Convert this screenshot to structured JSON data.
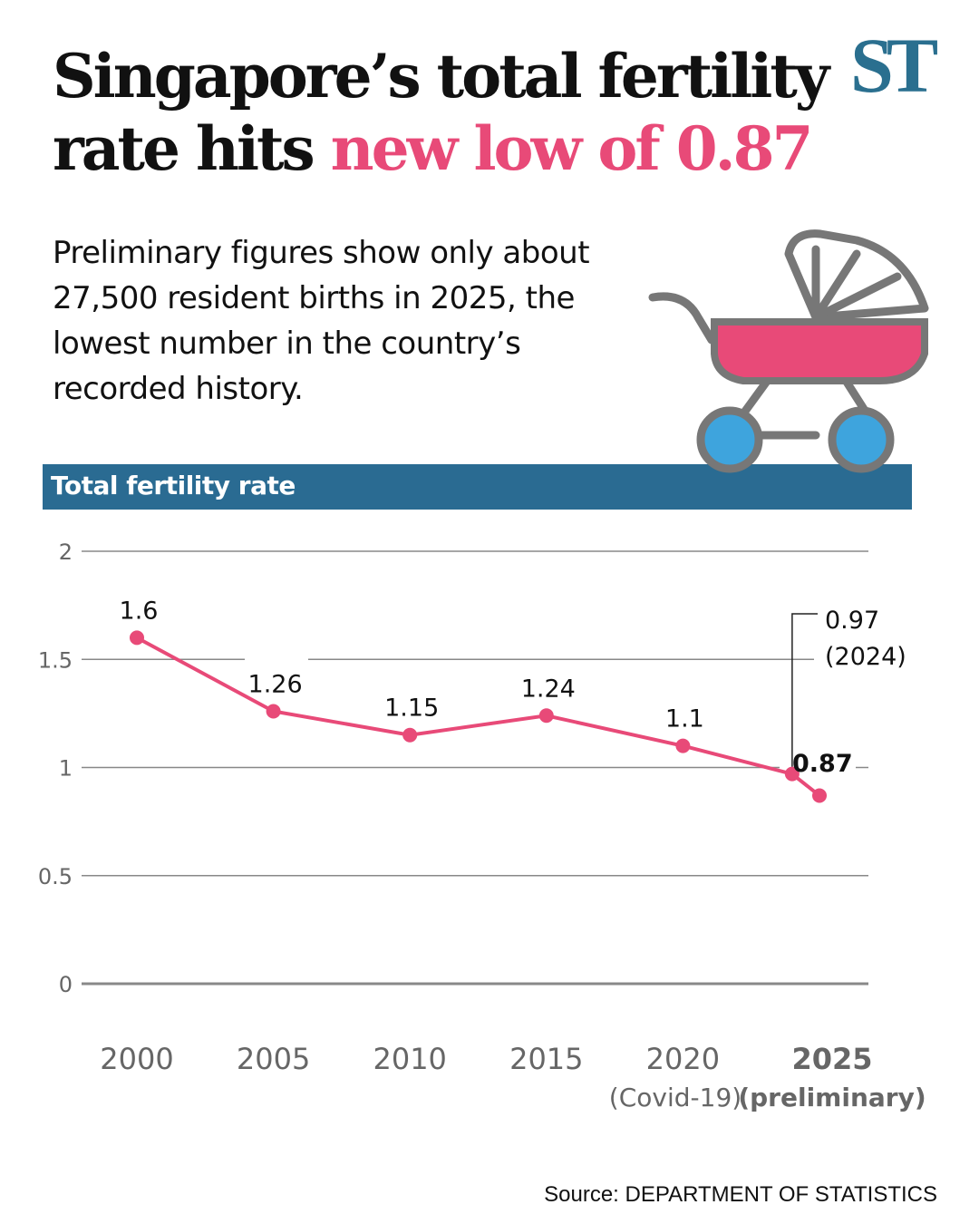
{
  "header": {
    "title_part1": "Singapore’s total fertility rate hits ",
    "title_highlight": "new low of 0.87",
    "logo": "ST",
    "subtitle": "Preliminary figures show only about 27,500 resident births in 2025, the lowest number in the country’s recorded history."
  },
  "colors": {
    "accent": "#e84a78",
    "band": "#2a6b92",
    "logo": "#2a6f8f",
    "wheel": "#3ea4dd",
    "stroller_frame": "#777777"
  },
  "illustration": "baby-stroller-icon",
  "chart_data": {
    "type": "line",
    "title": "Total fertility rate",
    "ylim": [
      0,
      2
    ],
    "yticks": [
      "0",
      "0.5",
      "1",
      "1.5",
      "2"
    ],
    "grid": true,
    "xtick_labels": [
      {
        "year": 2000,
        "label": "2000",
        "note": ""
      },
      {
        "year": 2005,
        "label": "2005",
        "note": ""
      },
      {
        "year": 2010,
        "label": "2010",
        "note": ""
      },
      {
        "year": 2015,
        "label": "2015",
        "note": ""
      },
      {
        "year": 2020,
        "label": "2020",
        "note": "(Covid-19)"
      },
      {
        "year": 2025,
        "label": "2025",
        "note": "(preliminary)"
      }
    ],
    "points": [
      {
        "x": 2000,
        "y": 1.6,
        "label": "1.6"
      },
      {
        "x": 2005,
        "y": 1.26,
        "label": "1.26"
      },
      {
        "x": 2010,
        "y": 1.15,
        "label": "1.15"
      },
      {
        "x": 2015,
        "y": 1.24,
        "label": "1.24"
      },
      {
        "x": 2020,
        "y": 1.1,
        "label": "1.1"
      },
      {
        "x": 2024,
        "y": 0.97,
        "label": "0.97",
        "label2": "(2024)"
      },
      {
        "x": 2025,
        "y": 0.87,
        "label": "0.87"
      }
    ]
  },
  "source": "Source: DEPARTMENT OF STATISTICS"
}
